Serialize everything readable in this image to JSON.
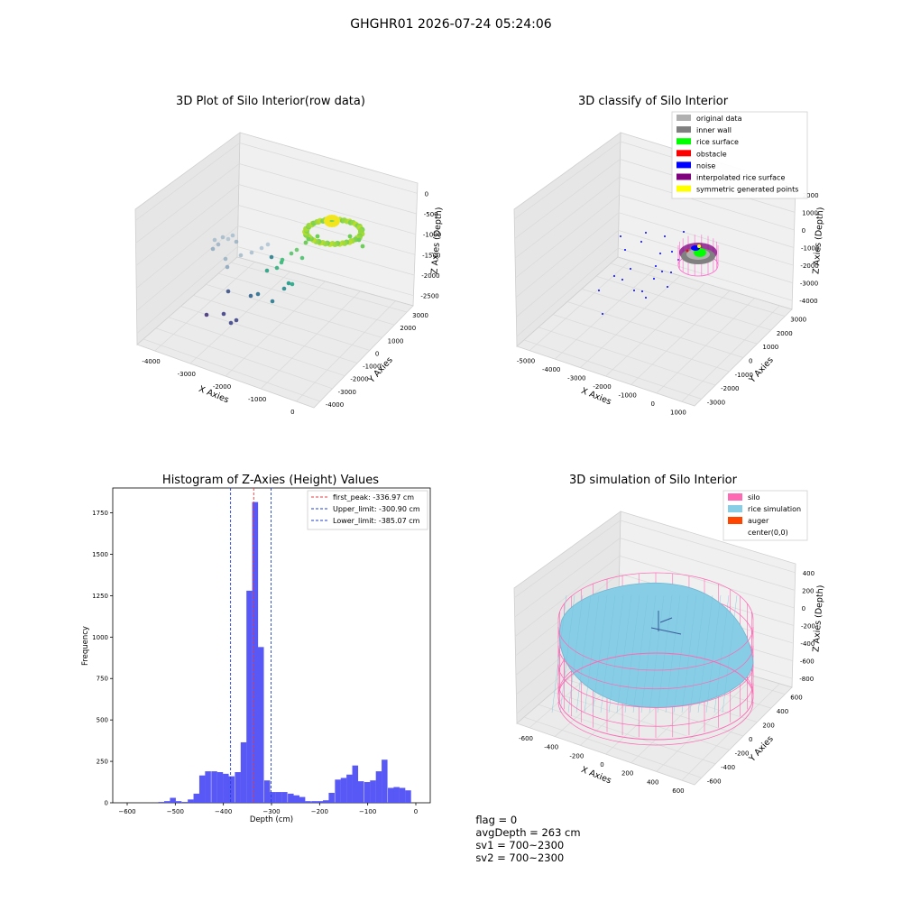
{
  "suptitle": "GHGHR01 2026-07-24 05:24:06",
  "footer": {
    "flag": "flag = 0",
    "avg_depth": "avgDepth = 263 cm",
    "sv1": "sv1 = 700~2300",
    "sv2": "sv2 = 700~2300"
  },
  "colors": {
    "pane": "#f0f0f0",
    "grid": "#d9d9d9",
    "hist_bar": "#4f4ff5",
    "peak_line": "#e8383d",
    "limit_line": "#1f3fd6",
    "silo": "#ff69b4",
    "rice": "#87cde6",
    "auger": "#ff4500"
  },
  "chart_data": [
    {
      "id": "raw",
      "type": "scatter",
      "title": "3D Plot of Silo Interior(row data)",
      "xlabel": "X Axies",
      "ylabel": "Y Axies",
      "zlabel": "Z Axies (Depth)",
      "x_ticks": [
        "-4000",
        "-3000",
        "-2000",
        "-1000",
        "0"
      ],
      "y_ticks": [
        "-4000",
        "-3000",
        "-2000",
        "-1000",
        "0",
        "1000",
        "2000",
        "3000"
      ],
      "z_ticks": [
        "0",
        "-500",
        "-1000",
        "-1500",
        "-2000",
        "-2500"
      ]
    },
    {
      "id": "classify",
      "type": "scatter",
      "title": "3D classify of Silo Interior",
      "xlabel": "X Axies",
      "ylabel": "Y Axies",
      "zlabel": "Z Axies (Depth)",
      "x_ticks": [
        "-5000",
        "-4000",
        "-3000",
        "-2000",
        "-1000",
        "0",
        "1000"
      ],
      "y_ticks": [
        "-3000",
        "-2000",
        "-1000",
        "0",
        "1000",
        "2000",
        "3000"
      ],
      "z_ticks": [
        "2000",
        "1000",
        "0",
        "-1000",
        "-2000",
        "-3000",
        "-4000"
      ],
      "legend": [
        {
          "label": "original data",
          "color": "#b0b0b0"
        },
        {
          "label": "inner wall",
          "color": "#808080"
        },
        {
          "label": "rice surface",
          "color": "#00ff00"
        },
        {
          "label": "obstacle",
          "color": "#ff0000"
        },
        {
          "label": "noise",
          "color": "#0000ff"
        },
        {
          "label": "interpolated rice surface",
          "color": "#800080"
        },
        {
          "label": "symmetric generated points",
          "color": "#ffff00"
        }
      ]
    },
    {
      "id": "hist",
      "type": "bar",
      "title": "Histogram of Z-Axies (Height) Values",
      "xlabel": "Depth (cm)",
      "ylabel": "Frequency",
      "xlim": [
        -630,
        30
      ],
      "ylim": [
        0,
        1900
      ],
      "x_ticks": [
        -600,
        -500,
        -400,
        -300,
        -200,
        -100,
        0
      ],
      "y_ticks": [
        0,
        250,
        500,
        750,
        1000,
        1250,
        1500,
        1750
      ],
      "bin_width": 12.2,
      "bins": [
        {
          "x": -529,
          "v": 5
        },
        {
          "x": -517,
          "v": 10
        },
        {
          "x": -505,
          "v": 30
        },
        {
          "x": -493,
          "v": 10
        },
        {
          "x": -480,
          "v": 5
        },
        {
          "x": -468,
          "v": 20
        },
        {
          "x": -456,
          "v": 55
        },
        {
          "x": -444,
          "v": 165
        },
        {
          "x": -432,
          "v": 190
        },
        {
          "x": -419,
          "v": 190
        },
        {
          "x": -407,
          "v": 185
        },
        {
          "x": -395,
          "v": 175
        },
        {
          "x": -383,
          "v": 160
        },
        {
          "x": -370,
          "v": 185
        },
        {
          "x": -358,
          "v": 365
        },
        {
          "x": -346,
          "v": 1280
        },
        {
          "x": -334,
          "v": 1815
        },
        {
          "x": -322,
          "v": 940
        },
        {
          "x": -309,
          "v": 135
        },
        {
          "x": -297,
          "v": 65
        },
        {
          "x": -285,
          "v": 65
        },
        {
          "x": -273,
          "v": 65
        },
        {
          "x": -260,
          "v": 55
        },
        {
          "x": -248,
          "v": 45
        },
        {
          "x": -236,
          "v": 35
        },
        {
          "x": -224,
          "v": 10
        },
        {
          "x": -211,
          "v": 10
        },
        {
          "x": -199,
          "v": 10
        },
        {
          "x": -187,
          "v": 15
        },
        {
          "x": -175,
          "v": 60
        },
        {
          "x": -162,
          "v": 140
        },
        {
          "x": -150,
          "v": 150
        },
        {
          "x": -138,
          "v": 170
        },
        {
          "x": -126,
          "v": 225
        },
        {
          "x": -114,
          "v": 130
        },
        {
          "x": -101,
          "v": 125
        },
        {
          "x": -89,
          "v": 135
        },
        {
          "x": -77,
          "v": 190
        },
        {
          "x": -65,
          "v": 260
        },
        {
          "x": -52,
          "v": 90
        },
        {
          "x": -40,
          "v": 95
        },
        {
          "x": -28,
          "v": 90
        },
        {
          "x": -16,
          "v": 75
        }
      ],
      "vlines": [
        {
          "x": -336.97,
          "label": "first_peak: -336.97 cm",
          "role": "peak"
        },
        {
          "x": -300.9,
          "label": "Upper_limit: -300.90 cm",
          "role": "limit"
        },
        {
          "x": -385.07,
          "label": "Lower_limit: -385.07 cm",
          "role": "limit"
        }
      ],
      "legend_position": "upper right"
    },
    {
      "id": "sim",
      "type": "area",
      "title": "3D simulation of Silo Interior",
      "xlabel": "X Axies",
      "ylabel": "Y Axies",
      "zlabel": "Z Axies (Depth)",
      "x_ticks": [
        "-600",
        "-400",
        "-200",
        "0",
        "200",
        "400",
        "600"
      ],
      "y_ticks": [
        "-600",
        "-400",
        "-200",
        "0",
        "200",
        "400",
        "600"
      ],
      "z_ticks": [
        "400",
        "200",
        "0",
        "-200",
        "-400",
        "-600",
        "-800"
      ],
      "legend": [
        {
          "label": "silo",
          "color": "#ff69b4"
        },
        {
          "label": "rice simulation",
          "color": "#87cde6"
        },
        {
          "label": "auger",
          "color": "#ff4500"
        },
        {
          "label": "center(0,0)",
          "color": ""
        }
      ]
    }
  ]
}
